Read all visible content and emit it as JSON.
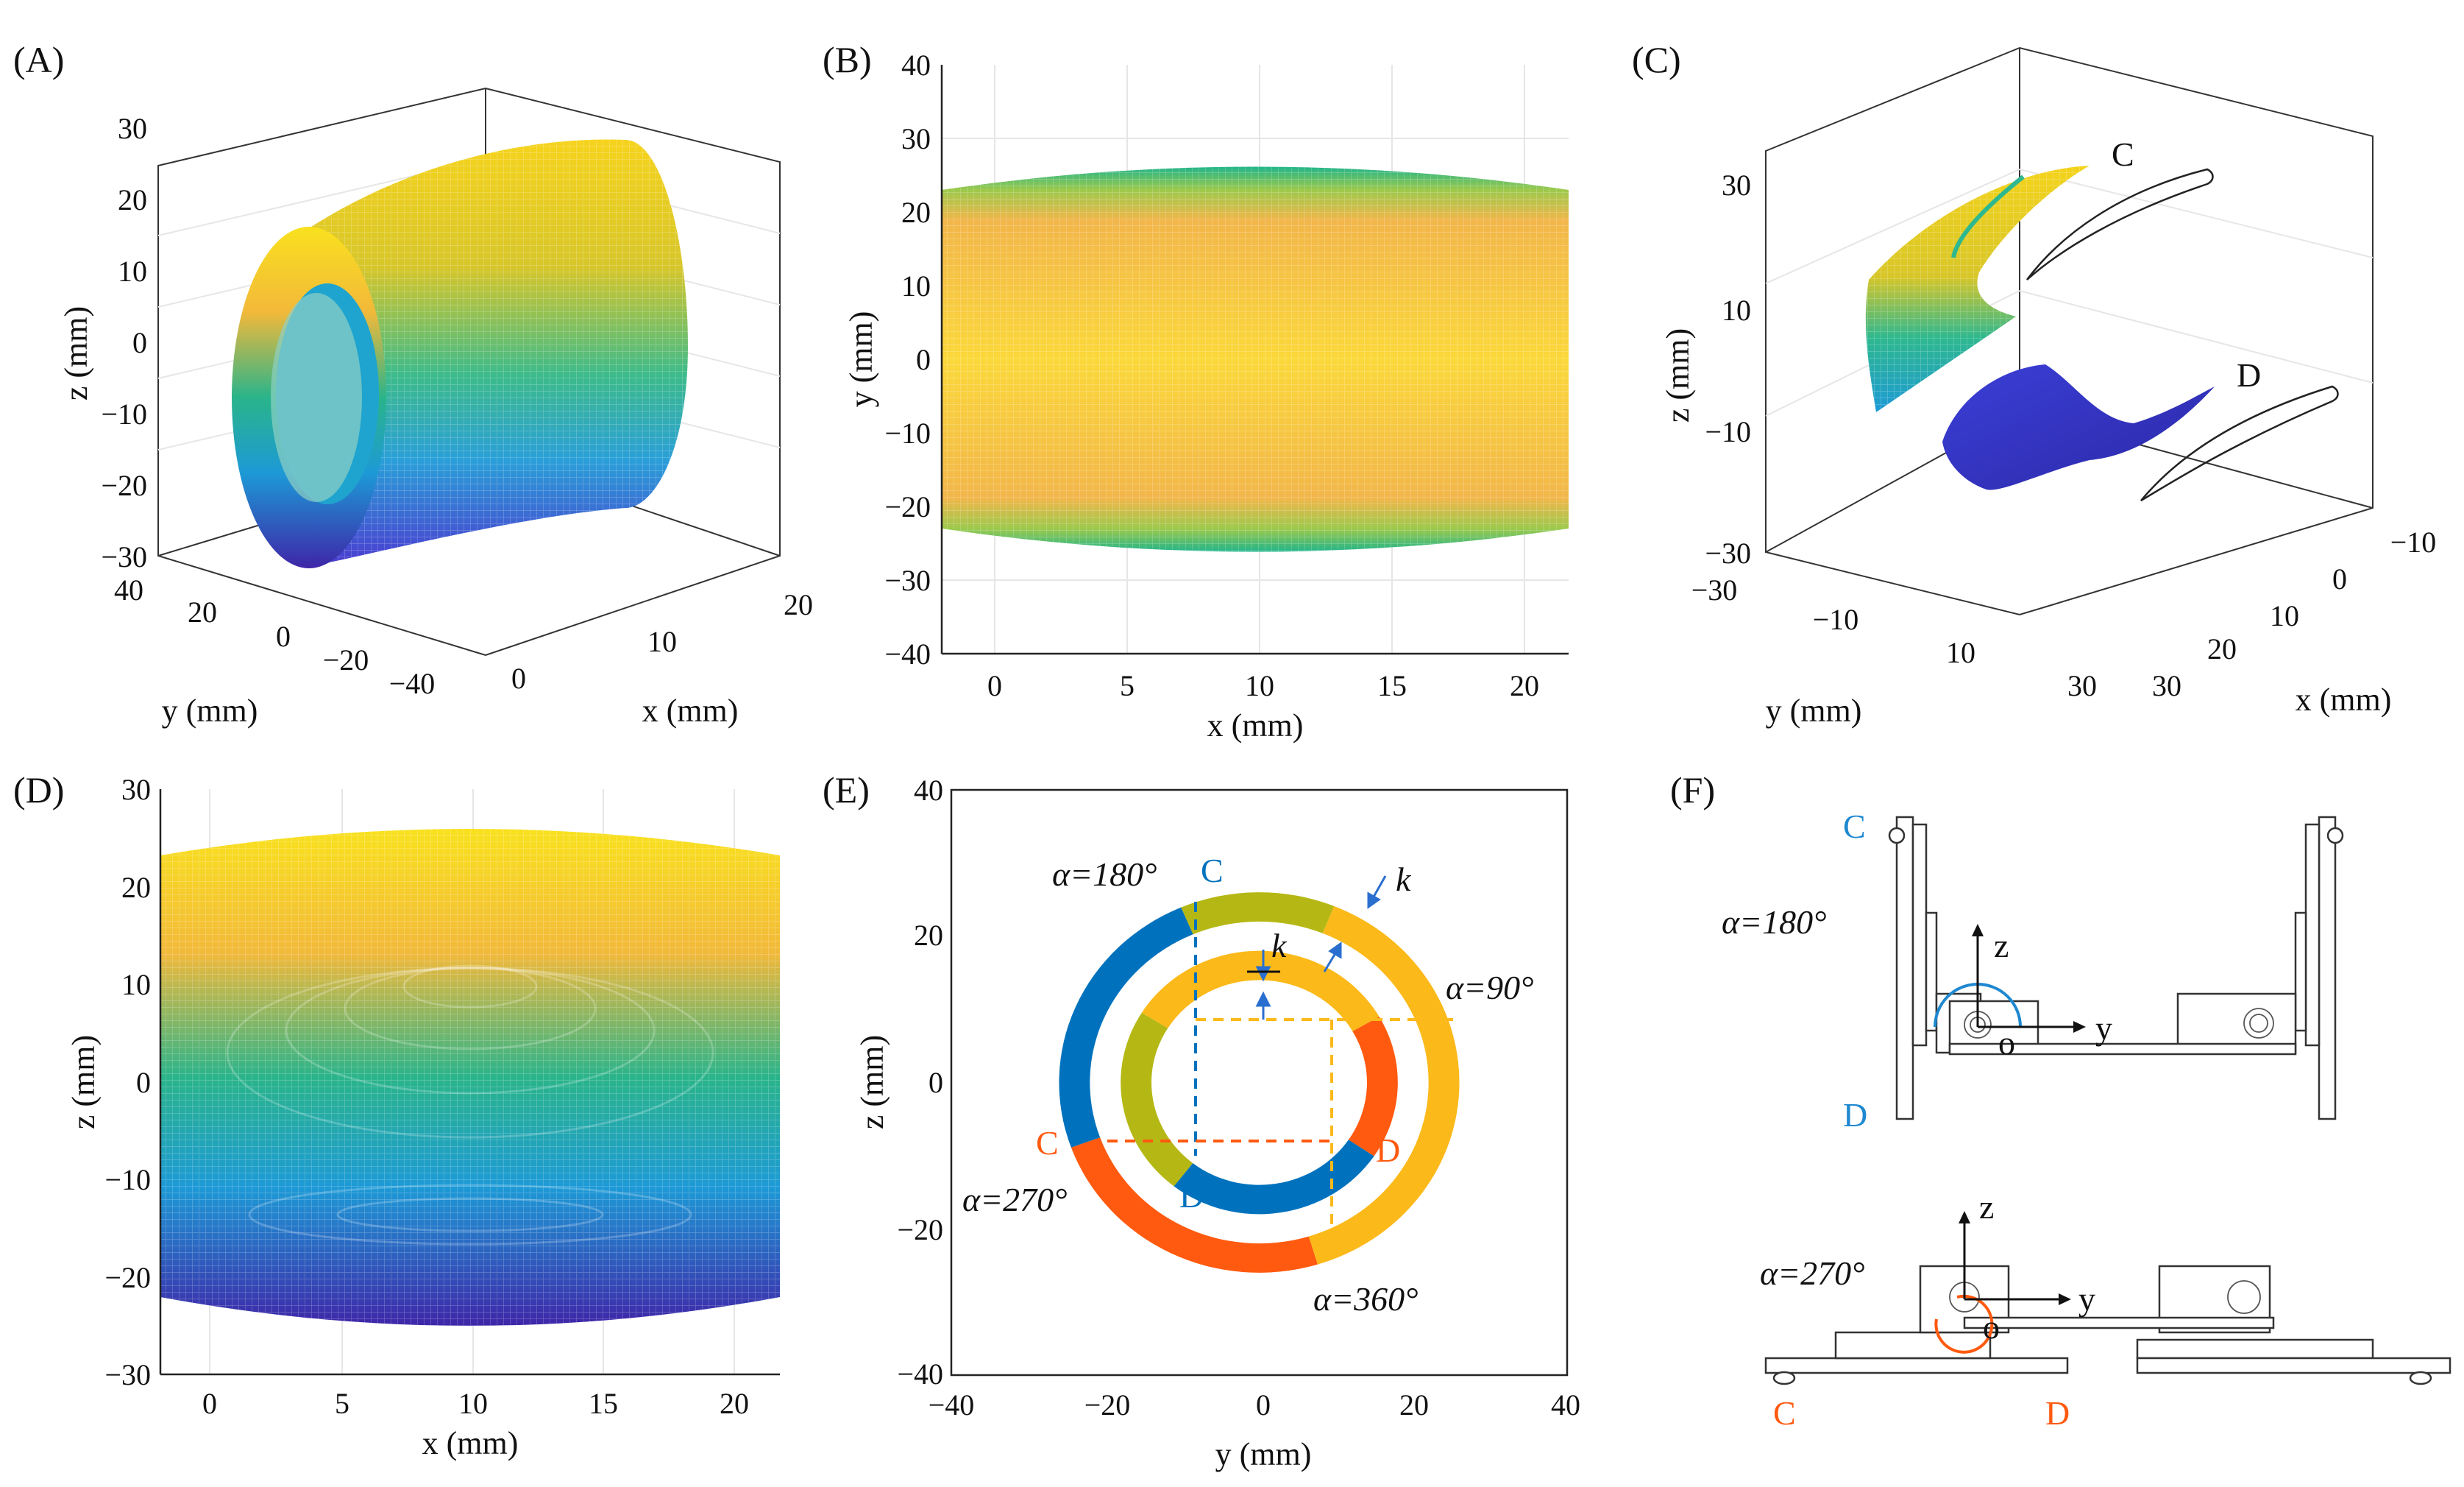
{
  "panels": {
    "a": {
      "label": "(A)",
      "xlabel": "x (mm)",
      "ylabel": "y (mm)",
      "zlabel": "z (mm)",
      "zticks": [
        "30",
        "20",
        "10",
        "0",
        "−10",
        "−20",
        "−30"
      ],
      "yticks": [
        "40",
        "20",
        "0",
        "−20",
        "−40"
      ],
      "xticks": [
        "0",
        "10",
        "20"
      ]
    },
    "b": {
      "label": "(B)",
      "xlabel": "x (mm)",
      "ylabel": "y (mm)",
      "xticks": [
        "0",
        "5",
        "10",
        "15",
        "20"
      ],
      "yticks": [
        "40",
        "30",
        "20",
        "10",
        "0",
        "−10",
        "−20",
        "−30",
        "−40"
      ]
    },
    "c": {
      "label": "(C)",
      "xlabel": "x (mm)",
      "ylabel": "y (mm)",
      "zlabel": "z (mm)",
      "zticks": [
        "30",
        "10",
        "−10",
        "−30"
      ],
      "yticks": [
        "−30",
        "−10",
        "10",
        "30"
      ],
      "xticks": [
        "−10",
        "0",
        "10",
        "20",
        "30"
      ],
      "surface_c": "C",
      "surface_d": "D"
    },
    "d": {
      "label": "(D)",
      "xlabel": "x (mm)",
      "ylabel": "z (mm)",
      "xticks": [
        "0",
        "5",
        "10",
        "15",
        "20"
      ],
      "yticks": [
        "30",
        "20",
        "10",
        "0",
        "−10",
        "−20",
        "−30"
      ]
    },
    "e": {
      "label": "(E)",
      "xlabel": "y (mm)",
      "ylabel": "z (mm)",
      "xticks": [
        "−40",
        "−20",
        "0",
        "20",
        "40"
      ],
      "yticks": [
        "40",
        "20",
        "0",
        "−20",
        "−40"
      ],
      "ann_a180": "α=180°",
      "ann_a90": "α=90°",
      "ann_a270": "α=270°",
      "ann_a360": "α=360°",
      "ann_k": "k",
      "c_top": "C",
      "c_left": "C",
      "d_bottom": "D",
      "d_right": "D"
    },
    "f": {
      "label": "(F)",
      "top_angle": "α=180°",
      "bottom_angle": "α=270°",
      "axis_z": "z",
      "axis_y": "y",
      "origin": "o",
      "top_c": "C",
      "top_d": "D",
      "bottom_c": "C",
      "bottom_d": "D"
    }
  },
  "colors": {
    "blue": "#0072bd",
    "orange": "#ff5a0f",
    "olive": "#b5b814",
    "yellow": "#fbb91a",
    "viridis_top": "#f9e11e",
    "viridis_bottom": "#3e26a8"
  },
  "chart_data": [
    {
      "type": "surface3d",
      "title": "(A)",
      "xlabel": "x (mm)",
      "ylabel": "y (mm)",
      "zlabel": "z (mm)",
      "xlim": [
        0,
        22
      ],
      "ylim": [
        -40,
        40
      ],
      "zlim": [
        -30,
        30
      ],
      "description_values": {
        "outer_radius_mm": 25,
        "inner_radius_mm": 15
      }
    },
    {
      "type": "surface_projection",
      "title": "(B)",
      "xlabel": "x (mm)",
      "ylabel": "y (mm)",
      "xlim": [
        -2,
        22
      ],
      "ylim": [
        -40,
        40
      ],
      "band_y_max": [
        22,
        26
      ],
      "band_y_min": [
        -22,
        -26
      ]
    },
    {
      "type": "surface3d",
      "title": "(C)",
      "xlabel": "x (mm)",
      "ylabel": "y (mm)",
      "zlabel": "z (mm)",
      "xlim": [
        -10,
        30
      ],
      "ylim": [
        -30,
        30
      ],
      "zlim": [
        -30,
        30
      ],
      "series": [
        {
          "name": "C"
        },
        {
          "name": "D"
        }
      ]
    },
    {
      "type": "surface_projection",
      "title": "(D)",
      "xlabel": "x (mm)",
      "ylabel": "z (mm)",
      "xlim": [
        -2,
        22
      ],
      "ylim": [
        -30,
        30
      ],
      "band_z_max": [
        23,
        26
      ],
      "band_z_min": [
        -22,
        -26
      ]
    },
    {
      "type": "ring_diagram",
      "title": "(E)",
      "xlabel": "y (mm)",
      "ylabel": "z (mm)",
      "xlim": [
        -40,
        40
      ],
      "ylim": [
        -40,
        40
      ],
      "outer_ring": {
        "r_inner": 22,
        "r_outer": 26,
        "segments": [
          {
            "from_deg": 68,
            "to_deg": 113,
            "color": "olive"
          },
          {
            "from_deg": 113,
            "to_deg": 200,
            "color": "blue"
          },
          {
            "from_deg": 200,
            "to_deg": 287,
            "color": "orange"
          },
          {
            "from_deg": 287,
            "to_deg": 428,
            "color": "yellow"
          }
        ]
      },
      "inner_ring": {
        "r_inner": 14,
        "r_outer": 18,
        "segments": [
          {
            "from_deg": 30,
            "to_deg": 148,
            "color": "yellow"
          },
          {
            "from_deg": 148,
            "to_deg": 232,
            "color": "olive"
          },
          {
            "from_deg": 232,
            "to_deg": 326,
            "color": "blue"
          },
          {
            "from_deg": 326,
            "to_deg": 390,
            "color": "orange"
          }
        ]
      }
    }
  ]
}
